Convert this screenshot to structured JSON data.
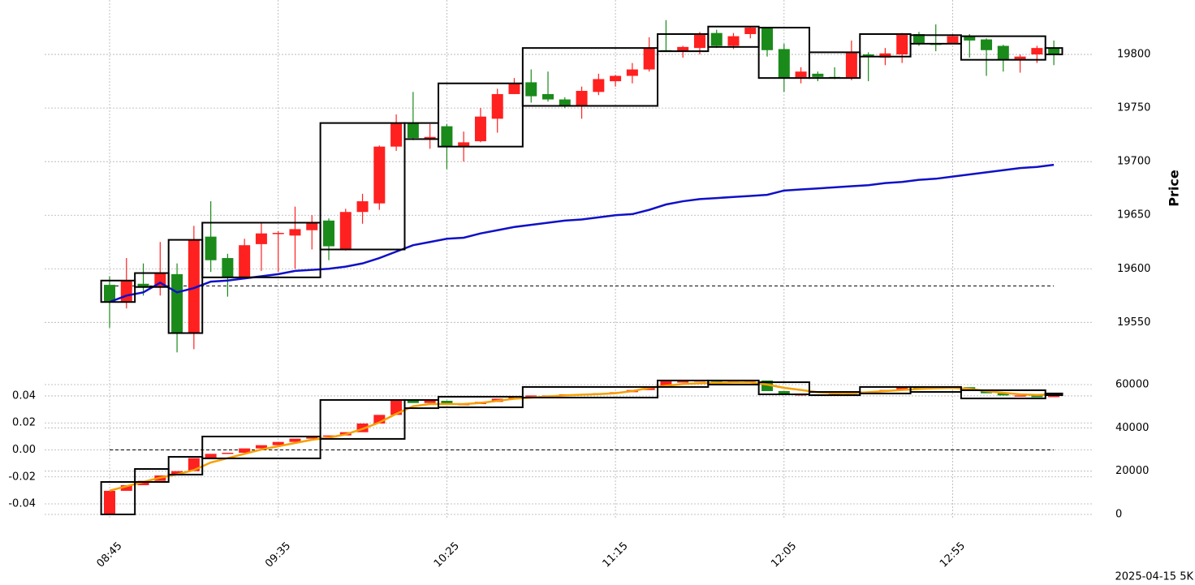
{
  "chart_data": [
    {
      "type": "candlestick",
      "ylabel": "Price",
      "categories": [
        "08:45",
        null,
        null,
        null,
        null,
        null,
        null,
        null,
        null,
        null,
        "09:35",
        null,
        null,
        null,
        null,
        null,
        null,
        null,
        null,
        null,
        "10:25",
        null,
        null,
        null,
        null,
        null,
        null,
        null,
        null,
        null,
        "11:15",
        null,
        null,
        null,
        null,
        null,
        null,
        null,
        null,
        null,
        "12:05",
        null,
        null,
        null,
        null,
        null,
        null,
        null,
        null,
        null,
        "12:55",
        null,
        null,
        null,
        null,
        null,
        null
      ],
      "open": [
        19585,
        19569,
        19586,
        19583,
        19595,
        19540,
        19630,
        19610,
        19592,
        19623,
        19633,
        19631,
        19636,
        19645,
        19618,
        19653,
        19661,
        19714,
        19736,
        19721,
        19733,
        19714,
        19719,
        19740,
        19763,
        19774,
        19763,
        19758,
        19752,
        19765,
        19775,
        19780,
        19786,
        19804,
        19803,
        19806,
        19820,
        19808,
        19819,
        19825,
        19805,
        19778,
        19782,
        19779,
        19778,
        19800,
        19797,
        19800,
        19819,
        19810,
        19810,
        19817,
        19814,
        19808,
        19795,
        19800,
        19806
      ],
      "high": [
        19593,
        19610,
        19605,
        19625,
        19605,
        19640,
        19663,
        19614,
        19628,
        19643,
        19635,
        19658,
        19650,
        19647,
        19656,
        19670,
        19715,
        19744,
        19765,
        19735,
        19735,
        19728,
        19750,
        19768,
        19778,
        19786,
        19784,
        19760,
        19770,
        19782,
        19781,
        19792,
        19816,
        19832,
        19808,
        19821,
        19823,
        19820,
        19826,
        19825,
        19810,
        19788,
        19784,
        19788,
        19813,
        19802,
        19806,
        19820,
        19821,
        19828,
        19819,
        19819,
        19815,
        19809,
        19800,
        19808,
        19813
      ],
      "low": [
        19545,
        19563,
        19575,
        19575,
        19522,
        19525,
        19597,
        19574,
        19590,
        19598,
        19597,
        19600,
        19618,
        19608,
        19617,
        19642,
        19655,
        19710,
        19720,
        19712,
        19693,
        19700,
        19718,
        19727,
        19763,
        19755,
        19756,
        19750,
        19740,
        19762,
        19770,
        19773,
        19784,
        19803,
        19797,
        19800,
        19806,
        19805,
        19815,
        19798,
        19765,
        19773,
        19775,
        19777,
        19776,
        19775,
        19790,
        19792,
        19808,
        19803,
        19810,
        19797,
        19780,
        19784,
        19783,
        19792,
        19790
      ],
      "close": [
        19569,
        19589,
        19583,
        19596,
        19540,
        19627,
        19608,
        19592,
        19622,
        19633,
        19633.5,
        19637,
        19643,
        19621,
        19653,
        19663,
        19714,
        19736,
        19722,
        19723,
        19714,
        19718,
        19742,
        19763,
        19773,
        19761,
        19758,
        19752,
        19766,
        19777,
        19780,
        19786,
        19806,
        19803,
        19807,
        19819,
        19808,
        19817,
        19825,
        19804,
        19778,
        19784,
        19779,
        19778,
        19802,
        19798,
        19801,
        19819,
        19810,
        19809,
        19817,
        19813,
        19804,
        19795,
        19798,
        19806,
        19800
      ],
      "up_color": "#ff2020",
      "down_color": "#1a8a1a",
      "line": {
        "color": "#1010c8",
        "values": [
          19569,
          19575,
          19578,
          19587,
          19578,
          19582,
          19588,
          19589,
          19591,
          19593,
          19595,
          19598,
          19599,
          19600,
          19602,
          19605,
          19610,
          19616,
          19622,
          19625,
          19628,
          19629,
          19633,
          19636,
          19639,
          19641,
          19643,
          19645,
          19646,
          19648,
          19650,
          19651,
          19655,
          19660,
          19663,
          19665,
          19666,
          19667,
          19668,
          19669,
          19673,
          19674,
          19675,
          19676,
          19677,
          19678,
          19680,
          19681,
          19683,
          19684,
          19686,
          19688,
          19690,
          19692,
          19694,
          19695,
          19697
        ]
      },
      "hline": 19584,
      "boxes": [
        {
          "start": 0,
          "end": 1,
          "high": 19589,
          "low": 19569
        },
        {
          "start": 2,
          "end": 3,
          "high": 19596,
          "low": 19583
        },
        {
          "start": 4,
          "end": 5,
          "high": 19627,
          "low": 19540
        },
        {
          "start": 6,
          "end": 12,
          "high": 19643,
          "low": 19592
        },
        {
          "start": 13,
          "end": 17,
          "high": 19736,
          "low": 19618
        },
        {
          "start": 18,
          "end": 19,
          "high": 19736,
          "low": 19721
        },
        {
          "start": 20,
          "end": 24,
          "high": 19773,
          "low": 19714
        },
        {
          "start": 25,
          "end": 32,
          "high": 19806,
          "low": 19752
        },
        {
          "start": 33,
          "end": 35,
          "high": 19819,
          "low": 19803
        },
        {
          "start": 36,
          "end": 38,
          "high": 19826,
          "low": 19807
        },
        {
          "start": 39,
          "end": 41,
          "high": 19825,
          "low": 19778
        },
        {
          "start": 42,
          "end": 44,
          "high": 19802,
          "low": 19778
        },
        {
          "start": 45,
          "end": 47,
          "high": 19819,
          "low": 19798
        },
        {
          "start": 48,
          "end": 50,
          "high": 19818,
          "low": 19810
        },
        {
          "start": 51,
          "end": 55,
          "high": 19817,
          "low": 19795
        },
        {
          "start": 56,
          "end": 56,
          "high": 19806,
          "low": 19800
        }
      ],
      "ylim": [
        19498,
        19847
      ],
      "yticks": [
        19550,
        19600,
        19650,
        19700,
        19750,
        19800
      ],
      "grid": true
    },
    {
      "type": "candlestick",
      "open": [
        0,
        10900,
        13500,
        15500,
        18000,
        20000,
        26000,
        28000,
        28500,
        30500,
        32000,
        33500,
        35000,
        36000,
        36500,
        38000,
        42000,
        46000,
        52900,
        51500,
        52500,
        51000,
        51000,
        52000,
        53500,
        54400,
        55000,
        55000,
        55500,
        55500,
        56000,
        56500,
        57500,
        58900,
        61500,
        61500,
        61900,
        61500,
        61500,
        61900,
        57000,
        55500,
        55500,
        55500,
        55600,
        56500,
        56800,
        57500,
        58900,
        58300,
        58500,
        58800,
        57500,
        56000,
        55000,
        55000,
        54200
      ],
      "close": [
        10900,
        13500,
        15500,
        18000,
        20000,
        26000,
        28000,
        28500,
        30500,
        32000,
        33500,
        35000,
        36000,
        36500,
        38000,
        42000,
        46000,
        52900,
        51500,
        52500,
        51000,
        51000,
        52000,
        53500,
        54400,
        55000,
        55000,
        55500,
        55500,
        56000,
        56500,
        57500,
        58900,
        61500,
        61500,
        61900,
        61500,
        61500,
        61900,
        57000,
        55500,
        55500,
        55500,
        55600,
        56500,
        56800,
        57500,
        58900,
        58300,
        58500,
        58800,
        57500,
        56000,
        55000,
        55000,
        54200,
        55900
      ],
      "up_color": "#ff2020",
      "down_color": "#1a8a1a",
      "line": {
        "color": "#f5a000",
        "values": [
          11000,
          13000,
          15000,
          17000,
          18500,
          20500,
          24000,
          26000,
          28000,
          30000,
          31500,
          33000,
          34500,
          35500,
          37000,
          39500,
          42500,
          46500,
          50000,
          51000,
          51000,
          51000,
          51500,
          52500,
          53500,
          54000,
          54500,
          55000,
          55300,
          55600,
          56000,
          57000,
          58500,
          59500,
          60300,
          60600,
          60800,
          61000,
          61000,
          60000,
          58500,
          57500,
          56500,
          56000,
          56000,
          56500,
          57000,
          57500,
          58000,
          58300,
          58500,
          58000,
          57000,
          56200,
          55500,
          55200,
          55500
        ]
      },
      "hline": 0,
      "boxes": [
        {
          "start": 0,
          "end": 1,
          "high": 15000,
          "low": 0
        },
        {
          "start": 2,
          "end": 3,
          "high": 21000,
          "low": 15000
        },
        {
          "start": 4,
          "end": 5,
          "high": 26600,
          "low": 18400
        },
        {
          "start": 6,
          "end": 12,
          "high": 36000,
          "low": 25900
        },
        {
          "start": 13,
          "end": 17,
          "high": 52900,
          "low": 34900
        },
        {
          "start": 18,
          "end": 19,
          "high": 52900,
          "low": 49100
        },
        {
          "start": 20,
          "end": 24,
          "high": 54400,
          "low": 49500
        },
        {
          "start": 25,
          "end": 32,
          "high": 58900,
          "low": 54000
        },
        {
          "start": 33,
          "end": 35,
          "high": 61900,
          "low": 58900
        },
        {
          "start": 36,
          "end": 38,
          "high": 61900,
          "low": 60000
        },
        {
          "start": 39,
          "end": 41,
          "high": 61100,
          "low": 55500
        },
        {
          "start": 42,
          "end": 44,
          "high": 56600,
          "low": 55100
        },
        {
          "start": 45,
          "end": 47,
          "high": 58900,
          "low": 55900
        },
        {
          "start": 48,
          "end": 50,
          "high": 58900,
          "low": 56600
        },
        {
          "start": 51,
          "end": 55,
          "high": 57400,
          "low": 53600
        },
        {
          "start": 56,
          "end": 56,
          "high": 55900,
          "low": 55100
        }
      ],
      "ylim": [
        -0.0514,
        0.0532
      ],
      "yticks": [
        -0.04,
        -0.02,
        {
          "value": 0,
          "label": "0.00"
        },
        0.02,
        0.04
      ],
      "y2lim": [
        -2250,
        63000
      ],
      "y2ticks": [
        0,
        20000,
        40000,
        60000
      ],
      "grid": true
    }
  ],
  "footer": "2025-04-15 5K"
}
